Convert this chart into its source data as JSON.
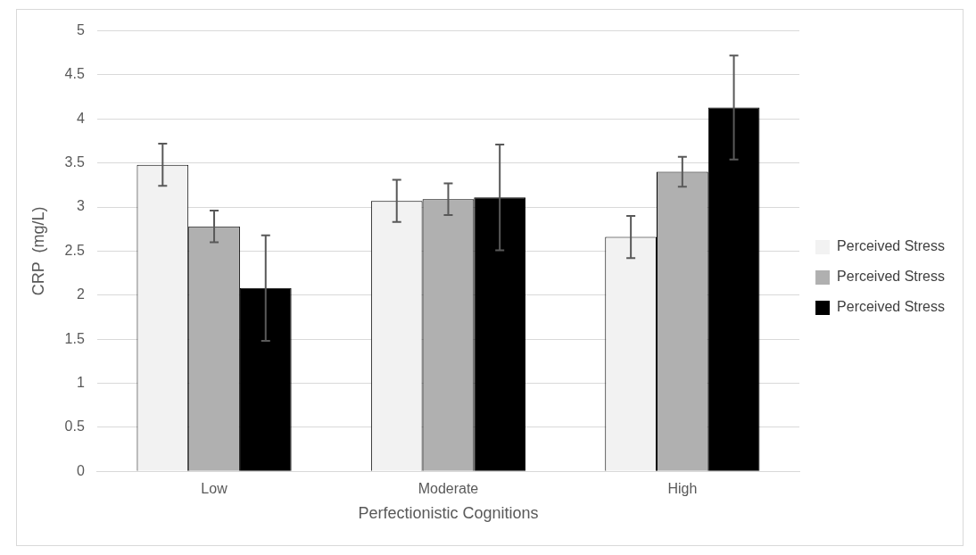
{
  "chart_data": {
    "type": "bar",
    "xlabel": "Perfectionistic Cognitions",
    "ylabel": "CRP  (mg/L)",
    "categories": [
      "Low",
      "Moderate",
      "High"
    ],
    "series": [
      {
        "name": "Perceived Stress",
        "color": "#f2f2f2",
        "values": [
          3.48,
          3.07,
          2.66
        ],
        "errors": [
          0.24,
          0.24,
          0.24
        ]
      },
      {
        "name": "Perceived Stress",
        "color": "#b0b0b0",
        "values": [
          2.78,
          3.09,
          3.4
        ],
        "errors": [
          0.18,
          0.18,
          0.17
        ]
      },
      {
        "name": "Perceived Stress",
        "color": "#000000",
        "values": [
          2.08,
          3.11,
          4.13
        ],
        "errors": [
          0.6,
          0.6,
          0.59
        ]
      }
    ],
    "ylim": [
      0,
      5
    ],
    "yticks": [
      0,
      0.5,
      1,
      1.5,
      2,
      2.5,
      3,
      3.5,
      4,
      4.5,
      5
    ],
    "grid": "y",
    "legend": "right"
  }
}
